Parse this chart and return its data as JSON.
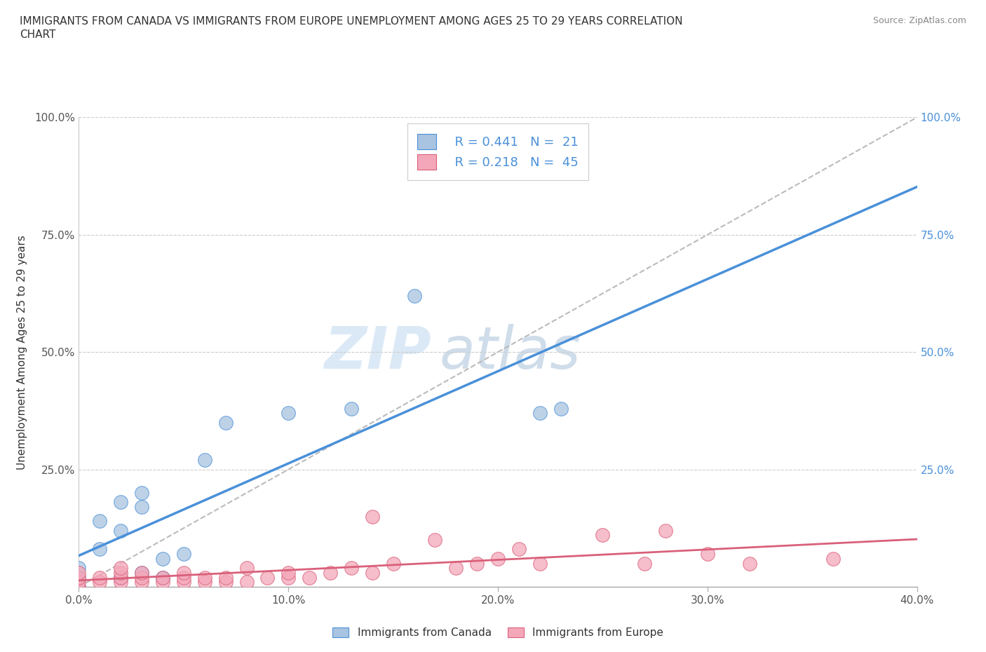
{
  "title_line1": "IMMIGRANTS FROM CANADA VS IMMIGRANTS FROM EUROPE UNEMPLOYMENT AMONG AGES 25 TO 29 YEARS CORRELATION",
  "title_line2": "CHART",
  "source": "Source: ZipAtlas.com",
  "ylabel": "Unemployment Among Ages 25 to 29 years",
  "xlabel_legend1": "Immigrants from Canada",
  "xlabel_legend2": "Immigrants from Europe",
  "R_canada": 0.441,
  "N_canada": 21,
  "R_europe": 0.218,
  "N_europe": 45,
  "xlim": [
    0.0,
    0.4
  ],
  "ylim": [
    0.0,
    1.0
  ],
  "color_canada": "#a8c4e0",
  "color_europe": "#f4a7b9",
  "color_trendline_canada": "#4a90d9",
  "color_trendline_europe": "#d9607a",
  "color_trendline_diagonal": "#bbbbbb",
  "watermark_zip": "ZIP",
  "watermark_atlas": "atlas",
  "canada_x": [
    0.0,
    0.0,
    0.0,
    0.01,
    0.01,
    0.02,
    0.02,
    0.02,
    0.03,
    0.03,
    0.03,
    0.04,
    0.04,
    0.05,
    0.06,
    0.07,
    0.1,
    0.13,
    0.16,
    0.22,
    0.23
  ],
  "canada_y": [
    0.0,
    0.02,
    0.04,
    0.08,
    0.14,
    0.02,
    0.12,
    0.18,
    0.03,
    0.17,
    0.2,
    0.02,
    0.06,
    0.07,
    0.27,
    0.35,
    0.37,
    0.38,
    0.62,
    0.37,
    0.38
  ],
  "europe_x": [
    0.0,
    0.0,
    0.0,
    0.0,
    0.01,
    0.01,
    0.02,
    0.02,
    0.02,
    0.02,
    0.03,
    0.03,
    0.03,
    0.04,
    0.04,
    0.05,
    0.05,
    0.05,
    0.06,
    0.06,
    0.07,
    0.07,
    0.08,
    0.08,
    0.09,
    0.1,
    0.1,
    0.11,
    0.12,
    0.13,
    0.14,
    0.14,
    0.15,
    0.17,
    0.18,
    0.19,
    0.2,
    0.21,
    0.22,
    0.25,
    0.27,
    0.28,
    0.3,
    0.32,
    0.36
  ],
  "europe_y": [
    0.0,
    0.01,
    0.02,
    0.03,
    0.01,
    0.02,
    0.01,
    0.02,
    0.03,
    0.04,
    0.01,
    0.02,
    0.03,
    0.01,
    0.02,
    0.01,
    0.02,
    0.03,
    0.01,
    0.02,
    0.01,
    0.02,
    0.01,
    0.04,
    0.02,
    0.02,
    0.03,
    0.02,
    0.03,
    0.04,
    0.03,
    0.15,
    0.05,
    0.1,
    0.04,
    0.05,
    0.06,
    0.08,
    0.05,
    0.11,
    0.05,
    0.12,
    0.07,
    0.05,
    0.06
  ]
}
